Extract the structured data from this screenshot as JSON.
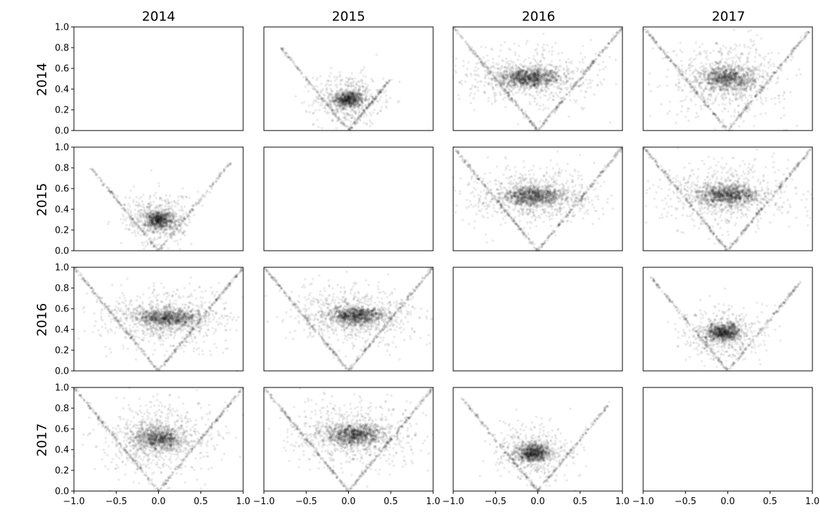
{
  "chart_data": {
    "type": "scatter",
    "layout": "4x4 pairwise grid",
    "years": [
      "2014",
      "2015",
      "2016",
      "2017"
    ],
    "col_titles": [
      "2014",
      "2015",
      "2016",
      "2017"
    ],
    "row_titles": [
      "2014",
      "2015",
      "2016",
      "2017"
    ],
    "xlim": [
      -1.0,
      1.0
    ],
    "ylim": [
      0.0,
      1.0
    ],
    "x_ticks": [
      -1.0,
      -0.5,
      0.0,
      0.5,
      1.0
    ],
    "x_tick_labels": [
      "−1.0",
      "−0.5",
      "0.0",
      "0.5",
      "1.0"
    ],
    "y_ticks": [
      0.0,
      0.2,
      0.4,
      0.6,
      0.8,
      1.0
    ],
    "y_tick_labels": [
      "0.0",
      "0.2",
      "0.4",
      "0.6",
      "0.8",
      "1.0"
    ],
    "point_color": "#000000",
    "point_alpha": 0.08,
    "grid": false,
    "diagonal_panels_empty": true,
    "panels": [
      {
        "row": 0,
        "col": 1,
        "cluster": {
          "x": 0.0,
          "y": 0.3,
          "sx": 0.2,
          "sy": 0.09
        },
        "v_arms": [
          -0.8,
          0.5
        ],
        "density": 0.9
      },
      {
        "row": 0,
        "col": 2,
        "cluster": {
          "x": -0.1,
          "y": 0.51,
          "sx": 0.4,
          "sy": 0.1
        },
        "v_arms": [
          -1.0,
          1.0
        ],
        "density": 1.3
      },
      {
        "row": 0,
        "col": 3,
        "cluster": {
          "x": 0.0,
          "y": 0.5,
          "sx": 0.35,
          "sy": 0.13
        },
        "v_arms": [
          -1.0,
          1.0
        ],
        "density": 1.2
      },
      {
        "row": 1,
        "col": 0,
        "cluster": {
          "x": 0.0,
          "y": 0.3,
          "sx": 0.2,
          "sy": 0.09
        },
        "v_arms": [
          -0.8,
          0.85
        ],
        "density": 0.9
      },
      {
        "row": 1,
        "col": 2,
        "cluster": {
          "x": -0.05,
          "y": 0.53,
          "sx": 0.4,
          "sy": 0.1
        },
        "v_arms": [
          -1.0,
          1.0
        ],
        "density": 1.3
      },
      {
        "row": 1,
        "col": 3,
        "cluster": {
          "x": 0.0,
          "y": 0.54,
          "sx": 0.38,
          "sy": 0.11
        },
        "v_arms": [
          -1.0,
          1.0
        ],
        "density": 1.3
      },
      {
        "row": 2,
        "col": 0,
        "cluster": {
          "x": 0.1,
          "y": 0.51,
          "sx": 0.4,
          "sy": 0.1
        },
        "v_arms": [
          -1.0,
          1.0
        ],
        "density": 1.3
      },
      {
        "row": 2,
        "col": 1,
        "cluster": {
          "x": 0.1,
          "y": 0.53,
          "sx": 0.38,
          "sy": 0.1
        },
        "v_arms": [
          -1.0,
          1.0
        ],
        "density": 1.3
      },
      {
        "row": 2,
        "col": 3,
        "cluster": {
          "x": -0.05,
          "y": 0.37,
          "sx": 0.22,
          "sy": 0.09
        },
        "v_arms": [
          -0.9,
          0.85
        ],
        "density": 1.0
      },
      {
        "row": 3,
        "col": 0,
        "cluster": {
          "x": 0.0,
          "y": 0.5,
          "sx": 0.35,
          "sy": 0.13
        },
        "v_arms": [
          -1.0,
          1.0
        ],
        "density": 1.2
      },
      {
        "row": 3,
        "col": 1,
        "cluster": {
          "x": 0.05,
          "y": 0.54,
          "sx": 0.38,
          "sy": 0.11
        },
        "v_arms": [
          -1.0,
          1.0
        ],
        "density": 1.3
      },
      {
        "row": 3,
        "col": 2,
        "cluster": {
          "x": -0.05,
          "y": 0.37,
          "sx": 0.22,
          "sy": 0.09
        },
        "v_arms": [
          -0.9,
          0.85
        ],
        "density": 1.0
      }
    ]
  }
}
